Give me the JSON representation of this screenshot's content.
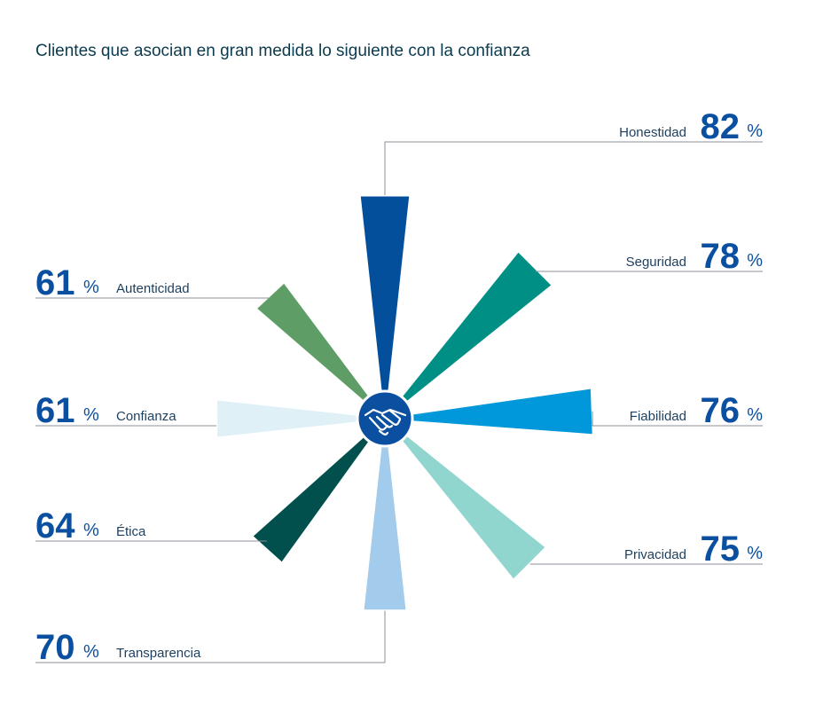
{
  "chart_data": {
    "type": "radial-bar",
    "title": "Clientes que asocian en gran medida lo siguiente con la confianza",
    "unit": "%",
    "center_icon": "handshake-icon",
    "series": [
      {
        "label": "Honestidad",
        "value": 82,
        "color": "#034f9c"
      },
      {
        "label": "Seguridad",
        "value": 78,
        "color": "#008f85"
      },
      {
        "label": "Fiabilidad",
        "value": 76,
        "color": "#0098da"
      },
      {
        "label": "Privacidad",
        "value": 75,
        "color": "#90d6cf"
      },
      {
        "label": "Transparencia",
        "value": 70,
        "color": "#a2cbec"
      },
      {
        "label": "Ética",
        "value": 64,
        "color": "#02504e"
      },
      {
        "label": "Confianza",
        "value": 61,
        "color": "#dff0f7"
      },
      {
        "label": "Autenticidad",
        "value": 61,
        "color": "#5e9e66"
      }
    ]
  }
}
